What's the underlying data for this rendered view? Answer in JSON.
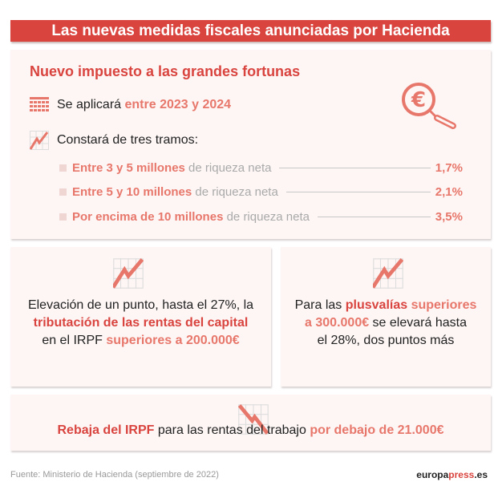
{
  "title": "Las nuevas medidas fiscales anunciadas por Hacienda",
  "colors": {
    "title_bar": "#d9443f",
    "highlight_strong": "#d9443f",
    "highlight_light": "#e8776b",
    "card_bg": "#fdf6f5"
  },
  "wealth_tax": {
    "heading": "Nuevo impuesto a las grandes fortunas",
    "icon": "euro-magnifier-icon",
    "period": {
      "icon": "calendar-icon",
      "prefix": "Se aplicará ",
      "highlight": "entre 2023 y 2024"
    },
    "brackets_intro": {
      "icon": "chart-up-icon",
      "text": "Constará de tres tramos:"
    },
    "brackets": [
      {
        "range": "Entre 3 y 5 millones",
        "suffix": " de riqueza neta",
        "rate": "1,7%"
      },
      {
        "range": "Entre 5 y 10 millones",
        "suffix": " de riqueza neta",
        "rate": "2,1%"
      },
      {
        "range": "Por encima de 10 millones",
        "suffix": " de riqueza neta",
        "rate": "3,5%"
      }
    ]
  },
  "capital_income": {
    "icon": "chart-up-icon",
    "line1": "Elevación de un punto, hasta el 27%, la",
    "line2": "tributación de las rentas del capital",
    "line3_prefix": "en el IRPF ",
    "line3_highlight": "superiores a 200.000€"
  },
  "capital_gains": {
    "icon": "chart-up-icon",
    "prefix": "Para las ",
    "h1": "plusvalías",
    "h2": " superiores",
    "h3": "a 300.000€",
    "mid": " se elevará hasta",
    "line3": "el 28%, dos puntos más"
  },
  "labor_income": {
    "icon": "chart-down-icon",
    "h1": "Rebaja del IRPF",
    "mid": " para las rentas del trabajo ",
    "h2": "por debajo de 21.000€"
  },
  "footer": {
    "source": "Fuente: Ministerio de Hacienda (septiembre de 2022)",
    "brand_a": "europa",
    "brand_b": "press",
    "brand_c": ".es"
  }
}
